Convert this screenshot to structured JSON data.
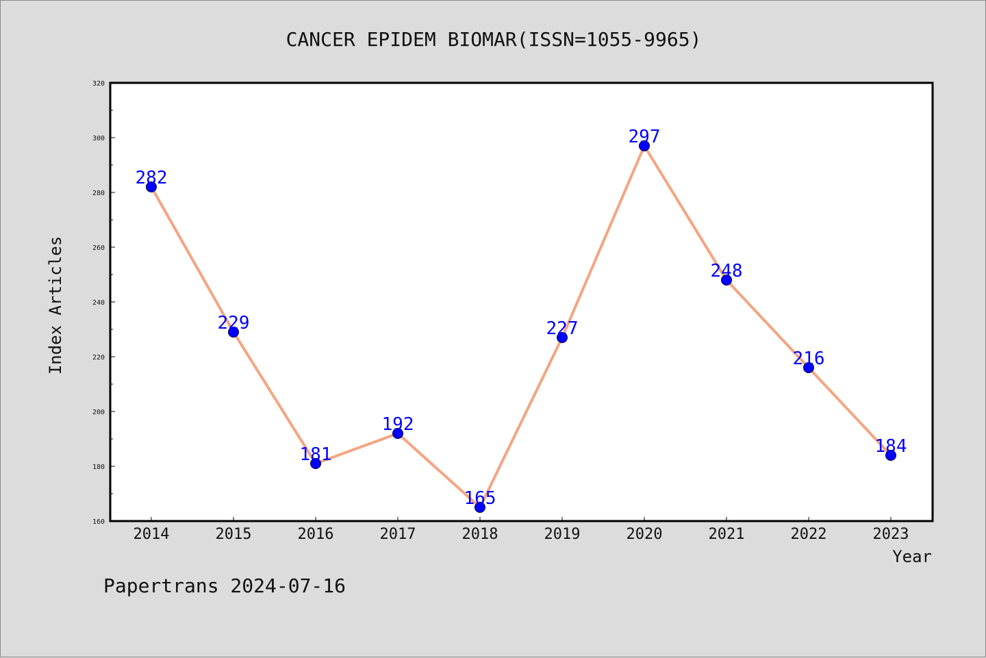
{
  "chart_data": {
    "type": "line",
    "title": "CANCER EPIDEM BIOMAR(ISSN=1055-9965)",
    "xlabel": "Year",
    "ylabel": "Index Articles",
    "categories": [
      "2014",
      "2015",
      "2016",
      "2017",
      "2018",
      "2019",
      "2020",
      "2021",
      "2022",
      "2023"
    ],
    "series": [
      {
        "values": [
          282,
          229,
          181,
          192,
          165,
          227,
          297,
          248,
          216,
          184
        ]
      }
    ],
    "ylim": [
      160,
      320
    ],
    "yticks": [
      "160",
      "180",
      "200",
      "220",
      "240",
      "260",
      "280",
      "300",
      "320"
    ],
    "grid": false,
    "colors": {
      "line": "#f4a582",
      "marker": "#0000ff",
      "label": "#0000ff"
    }
  },
  "footer": "Papertrans 2024-07-16"
}
